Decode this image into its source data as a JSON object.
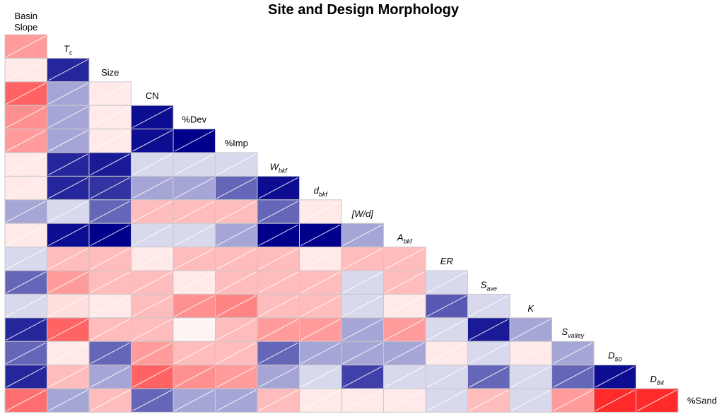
{
  "chart_data": {
    "type": "heatmap",
    "title": "Site and Design Morphology",
    "variables": [
      {
        "id": "basin_slope",
        "label": "Basin Slope"
      },
      {
        "id": "tc",
        "label": "T",
        "sub": "c"
      },
      {
        "id": "size",
        "label": "Size"
      },
      {
        "id": "cn",
        "label": "CN"
      },
      {
        "id": "pct_dev",
        "label": "%Dev"
      },
      {
        "id": "pct_imp",
        "label": "%Imp"
      },
      {
        "id": "w_bkf",
        "label": "W",
        "sub": "bkf"
      },
      {
        "id": "d_bkf",
        "label": "d",
        "sub": "bkf"
      },
      {
        "id": "w_over_d",
        "label": "[W/d]"
      },
      {
        "id": "a_bkf",
        "label": "A",
        "sub": "bkf"
      },
      {
        "id": "er",
        "label": "ER"
      },
      {
        "id": "s_ave",
        "label": "S",
        "sub": "ave"
      },
      {
        "id": "k",
        "label": "K"
      },
      {
        "id": "s_valley",
        "label": "S",
        "sub": "valley"
      },
      {
        "id": "d50",
        "label": "D",
        "sub": "50"
      },
      {
        "id": "d84",
        "label": "D",
        "sub": "84"
      },
      {
        "id": "pct_sand",
        "label": "%Sand"
      }
    ],
    "color_scale": {
      "negative": "#00008B",
      "zero": "#FFFFFF",
      "positive": "#FF2020"
    },
    "lower_triangle_correlations": [
      [
        0.45
      ],
      [
        0.1,
        -0.85
      ],
      [
        0.7,
        -0.35,
        0.1
      ],
      [
        0.5,
        -0.35,
        0.1,
        -0.95
      ],
      [
        0.45,
        -0.35,
        0.1,
        -0.95,
        -1.0
      ],
      [
        0.1,
        -0.85,
        -0.9,
        -0.15,
        -0.15,
        -0.15
      ],
      [
        0.1,
        -0.85,
        -0.8,
        -0.35,
        -0.35,
        -0.6,
        -0.95
      ],
      [
        -0.35,
        -0.15,
        -0.6,
        0.3,
        0.3,
        0.3,
        -0.6,
        0.1
      ],
      [
        0.1,
        -0.95,
        -1.0,
        -0.15,
        -0.15,
        -0.35,
        -1.0,
        -1.0,
        -0.35
      ],
      [
        -0.15,
        0.3,
        0.3,
        0.1,
        0.3,
        0.3,
        0.3,
        0.1,
        0.3,
        0.3
      ],
      [
        -0.6,
        0.45,
        0.3,
        0.3,
        0.1,
        0.3,
        0.3,
        0.3,
        -0.15,
        0.3,
        -0.15
      ],
      [
        -0.15,
        0.15,
        0.1,
        0.3,
        0.5,
        0.55,
        0.3,
        0.3,
        -0.15,
        0.1,
        -0.65,
        -0.15
      ],
      [
        -0.85,
        0.7,
        0.3,
        0.3,
        0.05,
        0.3,
        0.45,
        0.45,
        -0.35,
        0.45,
        -0.15,
        -0.9,
        -0.35
      ],
      [
        -0.6,
        0.1,
        -0.6,
        0.45,
        0.3,
        0.3,
        -0.6,
        -0.35,
        -0.35,
        -0.35,
        0.1,
        -0.15,
        0.1,
        -0.35
      ],
      [
        -0.85,
        0.3,
        -0.35,
        0.7,
        0.5,
        0.45,
        -0.35,
        -0.15,
        -0.75,
        -0.15,
        -0.15,
        -0.6,
        -0.15,
        -0.6,
        -0.95
      ],
      [
        0.65,
        -0.35,
        0.3,
        -0.6,
        -0.35,
        -0.35,
        0.3,
        0.1,
        0.1,
        0.1,
        -0.15,
        0.3,
        -0.15,
        0.45,
        0.95,
        0.95
      ]
    ]
  }
}
